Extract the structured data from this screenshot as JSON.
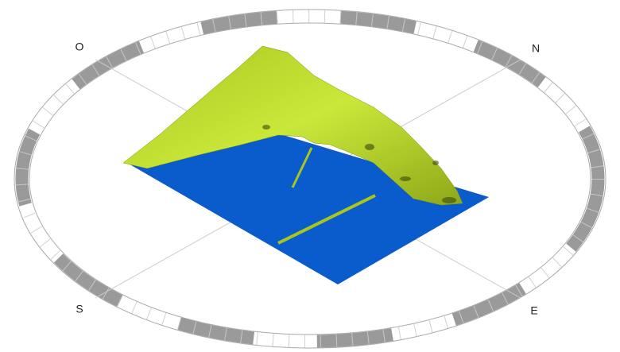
{
  "compass": {
    "labels": {
      "north": "N",
      "east": "E",
      "south": "S",
      "west": "O"
    }
  }
}
